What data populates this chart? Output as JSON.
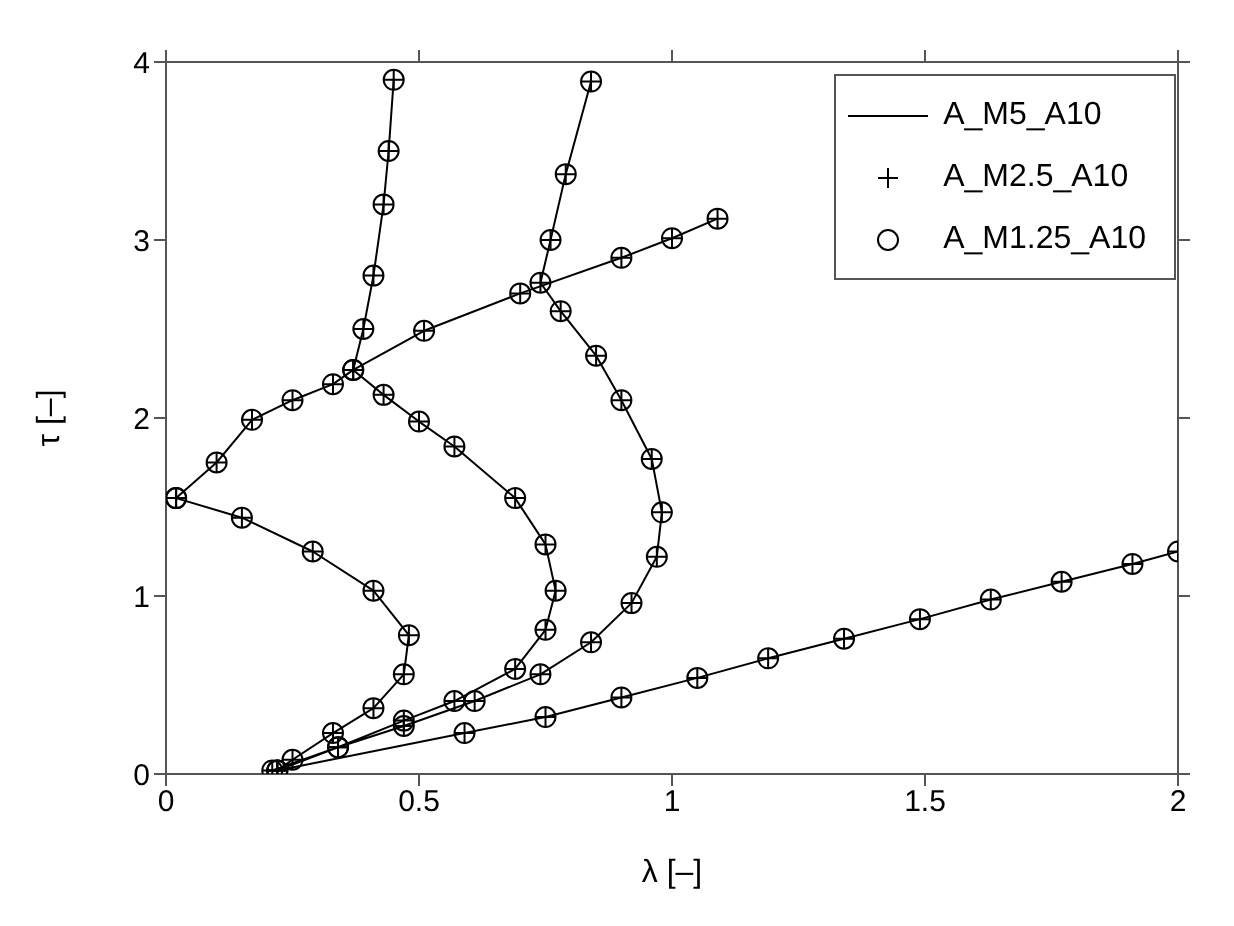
{
  "chart_data": {
    "type": "line",
    "xlabel": "λ [–]",
    "ylabel": "τ [–]",
    "xlim": [
      0,
      2
    ],
    "ylim": [
      0,
      4
    ],
    "xticks": [
      0,
      0.5,
      1,
      1.5,
      2
    ],
    "yticks": [
      0,
      1,
      2,
      3,
      4
    ],
    "legend": "top right",
    "x": [
      0.22,
      0.59,
      0.75,
      0.9,
      1.05,
      1.19,
      1.34,
      1.49,
      1.63,
      1.77,
      1.91,
      2.0,
      null,
      0.02,
      0.15,
      0.29,
      0.41,
      0.48,
      0.47,
      0.41,
      0.33,
      0.25,
      0.22,
      null,
      0.45,
      0.44,
      0.43,
      0.41,
      0.39,
      0.37,
      0.43,
      0.5,
      0.57,
      0.69,
      0.75,
      0.77,
      0.75,
      0.69,
      0.57,
      0.47,
      0.34,
      0.21,
      null,
      0.84,
      0.79,
      0.76,
      0.74,
      0.78,
      0.85,
      0.9,
      0.96,
      0.98,
      0.97,
      0.92,
      0.84,
      0.74,
      0.61,
      0.47,
      0.34,
      0.22,
      null,
      0.02,
      0.1,
      0.17,
      0.25,
      0.33,
      0.37,
      0.51,
      0.7,
      0.9,
      1.0,
      1.09
    ],
    "series": [
      {
        "name": "A_M5_A10",
        "marker": "none",
        "color": "#000000",
        "values": [
          0.02,
          0.23,
          0.32,
          0.43,
          0.54,
          0.65,
          0.76,
          0.87,
          0.98,
          1.08,
          1.18,
          1.25,
          null,
          1.55,
          1.44,
          1.25,
          1.03,
          0.78,
          0.56,
          0.37,
          0.23,
          0.08,
          0.02,
          null,
          3.9,
          3.5,
          3.2,
          2.8,
          2.5,
          2.27,
          2.13,
          1.98,
          1.84,
          1.55,
          1.29,
          1.03,
          0.81,
          0.59,
          0.41,
          0.3,
          0.15,
          0.02,
          null,
          3.89,
          3.37,
          3.0,
          2.76,
          2.6,
          2.35,
          2.1,
          1.77,
          1.47,
          1.22,
          0.96,
          0.74,
          0.56,
          0.41,
          0.27,
          0.15,
          0.02,
          null,
          1.55,
          1.75,
          1.99,
          2.1,
          2.19,
          2.27,
          2.49,
          2.7,
          2.9,
          3.01,
          3.12
        ]
      },
      {
        "name": "A_M2.5_A10",
        "type": "scatter",
        "marker": "cross",
        "color": "#000000",
        "values": [
          0.02,
          0.23,
          0.32,
          0.43,
          0.54,
          0.65,
          0.76,
          0.87,
          0.98,
          1.08,
          1.18,
          1.25,
          null,
          1.55,
          1.44,
          1.25,
          1.03,
          0.78,
          0.56,
          0.37,
          0.23,
          0.08,
          0.02,
          null,
          3.9,
          3.5,
          3.2,
          2.8,
          2.5,
          2.27,
          2.13,
          1.98,
          1.84,
          1.55,
          1.29,
          1.03,
          0.81,
          0.59,
          0.41,
          0.3,
          0.15,
          0.02,
          null,
          3.89,
          3.37,
          3.0,
          2.76,
          2.6,
          2.35,
          2.1,
          1.77,
          1.47,
          1.22,
          0.96,
          0.74,
          0.56,
          0.41,
          0.27,
          0.15,
          0.02,
          null,
          1.55,
          1.75,
          1.99,
          2.1,
          2.19,
          2.27,
          2.49,
          2.7,
          2.9,
          3.01,
          3.12
        ]
      },
      {
        "name": "A_M1.25_A10",
        "type": "scatter",
        "marker": "circle",
        "color": "#000000",
        "values": [
          0.02,
          0.23,
          0.32,
          0.43,
          0.54,
          0.65,
          0.76,
          0.87,
          0.98,
          1.08,
          1.18,
          1.25,
          null,
          1.55,
          1.44,
          1.25,
          1.03,
          0.78,
          0.56,
          0.37,
          0.23,
          0.08,
          0.02,
          null,
          3.9,
          3.5,
          3.2,
          2.8,
          2.5,
          2.27,
          2.13,
          1.98,
          1.84,
          1.55,
          1.29,
          1.03,
          0.81,
          0.59,
          0.41,
          0.3,
          0.15,
          0.02,
          null,
          3.89,
          3.37,
          3.0,
          2.76,
          2.6,
          2.35,
          2.1,
          1.77,
          1.47,
          1.22,
          0.96,
          0.74,
          0.56,
          0.41,
          0.27,
          0.15,
          0.02,
          null,
          1.55,
          1.75,
          1.99,
          2.1,
          2.19,
          2.27,
          2.49,
          2.7,
          2.9,
          3.01,
          3.12
        ]
      }
    ]
  }
}
